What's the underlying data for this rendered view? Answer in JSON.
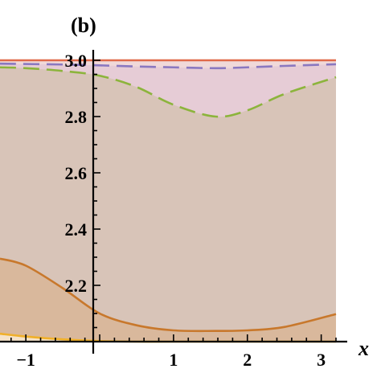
{
  "chart_data": {
    "type": "area",
    "panel_label": "(b)",
    "xlabel": "x",
    "ylabel": "",
    "xlim": [
      -1.35,
      3.2
    ],
    "ylim": [
      2.0,
      3.0
    ],
    "x_ticks": [
      {
        "value": -1,
        "label": "−1"
      },
      {
        "value": 1,
        "label": "1"
      },
      {
        "value": 2,
        "label": "2"
      },
      {
        "value": 3,
        "label": "3"
      }
    ],
    "y_ticks": [
      {
        "value": 2.2,
        "label": "2.2"
      },
      {
        "value": 2.4,
        "label": "2.4"
      },
      {
        "value": 2.6,
        "label": "2.6"
      },
      {
        "value": 2.8,
        "label": "2.8"
      },
      {
        "value": 3.0,
        "label": "3.0"
      }
    ],
    "grid": false,
    "series": [
      {
        "style": "solid",
        "color": "#e06a4a",
        "fill": "#f0d9d9",
        "x": [
          -1.35,
          -0.5,
          0.0,
          1.0,
          1.57,
          2.5,
          3.2
        ],
        "y": [
          3.0,
          3.0,
          3.0,
          3.0,
          3.0,
          3.0,
          3.0
        ]
      },
      {
        "style": "dashed",
        "color": "#8a78c0",
        "fill": "#e6ccd6",
        "x": [
          -1.35,
          -0.5,
          0.0,
          0.5,
          1.0,
          1.57,
          2.0,
          2.5,
          3.2
        ],
        "y": [
          2.988,
          2.985,
          2.982,
          2.978,
          2.975,
          2.972,
          2.975,
          2.98,
          2.986
        ]
      },
      {
        "style": "dashed",
        "color": "#8cb43c",
        "fill": "#d8c4b8",
        "x": [
          -1.35,
          -1.0,
          -0.5,
          0.0,
          0.5,
          1.0,
          1.57,
          2.0,
          2.5,
          3.2
        ],
        "y": [
          2.975,
          2.972,
          2.962,
          2.945,
          2.905,
          2.842,
          2.8,
          2.822,
          2.88,
          2.94
        ]
      },
      {
        "style": "solid",
        "color": "#c8782c",
        "fill": "#d9b89c",
        "x": [
          -1.35,
          -1.0,
          -0.5,
          0.0,
          0.5,
          1.0,
          1.57,
          2.0,
          2.5,
          3.2
        ],
        "y": [
          2.295,
          2.27,
          2.19,
          2.1,
          2.058,
          2.04,
          2.038,
          2.04,
          2.052,
          2.098
        ]
      },
      {
        "style": "solid",
        "color": "#f0b02a",
        "fill": "#f5e2c8",
        "x": [
          -1.35,
          -1.0,
          -0.5,
          0.0,
          0.5,
          1.0,
          1.57,
          2.0,
          2.5,
          3.2
        ],
        "y": [
          2.028,
          2.018,
          2.008,
          2.002,
          2.0,
          2.0,
          2.0,
          2.0,
          2.0,
          2.0
        ]
      }
    ]
  }
}
